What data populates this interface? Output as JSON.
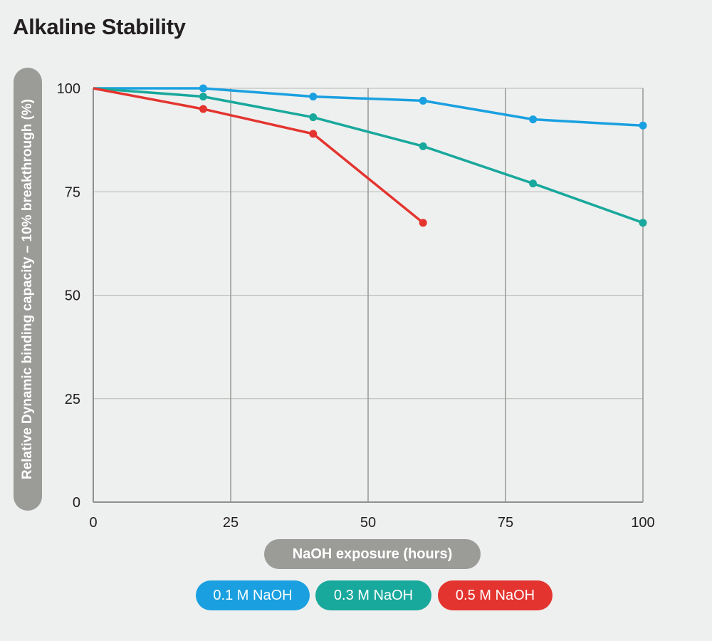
{
  "chart_data": {
    "type": "line",
    "title": "Alkaline Stability",
    "xlabel": "NaOH exposure (hours)",
    "ylabel": "Relative Dynamic binding capacity – 10% breakthrough (%)",
    "xlim": [
      0,
      100
    ],
    "ylim": [
      0,
      100
    ],
    "x_ticks": [
      "0",
      "25",
      "50",
      "75",
      "100"
    ],
    "y_ticks": [
      "0",
      "25",
      "50",
      "75",
      "100"
    ],
    "grid": true,
    "legend_position": "bottom",
    "series": [
      {
        "name": "0.1 M NaOH",
        "color": "#1aa0e0",
        "x": [
          0,
          20,
          40,
          60,
          80,
          100
        ],
        "y": [
          100,
          100,
          98,
          97,
          92.5,
          91
        ]
      },
      {
        "name": "0.3 M NaOH",
        "color": "#19a89c",
        "x": [
          0,
          20,
          40,
          60,
          80,
          100
        ],
        "y": [
          100,
          98,
          93,
          86,
          77,
          67.5
        ]
      },
      {
        "name": "0.5 M NaOH",
        "color": "#e4342f",
        "x": [
          0,
          20,
          40,
          60
        ],
        "y": [
          100,
          95,
          89,
          67.5
        ]
      }
    ]
  }
}
